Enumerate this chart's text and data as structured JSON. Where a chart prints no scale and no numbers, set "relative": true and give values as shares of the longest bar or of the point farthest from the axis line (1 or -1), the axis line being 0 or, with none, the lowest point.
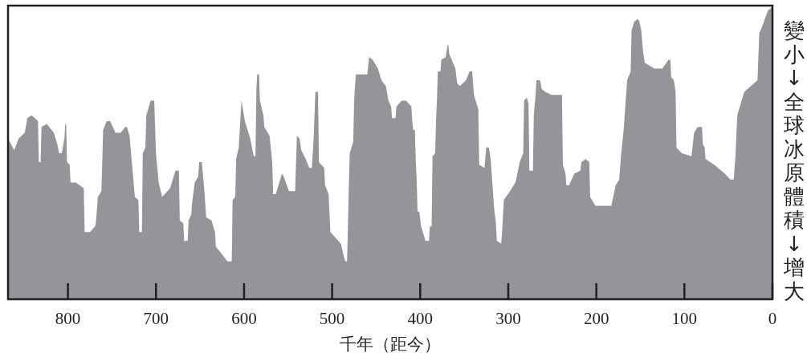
{
  "chart_data": {
    "type": "area",
    "relative": true,
    "xlabel": "千年（距今）",
    "ylabel": "變小↓全球冰原體積↓增大",
    "color": "#939598",
    "xlim": [
      868,
      0
    ],
    "xticks": [
      800,
      700,
      600,
      500,
      400,
      300,
      200,
      100,
      0
    ],
    "x": [
      868,
      861,
      856,
      849,
      846,
      841,
      834,
      833,
      831,
      830,
      824,
      816,
      812,
      810,
      807,
      804,
      803,
      802,
      801,
      798,
      797,
      791,
      782,
      781,
      775,
      769,
      768,
      766,
      762,
      761,
      760,
      756,
      752,
      746,
      740,
      735,
      733,
      730,
      726,
      724,
      720,
      719,
      716,
      715,
      712,
      711,
      706,
      702,
      700,
      697,
      693,
      684,
      679,
      678,
      674,
      673,
      669,
      668,
      664,
      663,
      660,
      659,
      656,
      652,
      651,
      648,
      645,
      643,
      637,
      633,
      632,
      624,
      619,
      616,
      614,
      613,
      610,
      609,
      606,
      603,
      599,
      593,
      589,
      587,
      586,
      585,
      583,
      582,
      578,
      577,
      571,
      568,
      567,
      564,
      557,
      555,
      549,
      542,
      540,
      537,
      535,
      530,
      526,
      523,
      521,
      519,
      516,
      515,
      509,
      508,
      504,
      502,
      490,
      487,
      485,
      483,
      481,
      480,
      476,
      475,
      474,
      473,
      460,
      458,
      454,
      448,
      444,
      439,
      436,
      433,
      432,
      428,
      427,
      421,
      416,
      410,
      409,
      408,
      406,
      405,
      404,
      403,
      401,
      399,
      394,
      390,
      389,
      387,
      386,
      383,
      382,
      381,
      380,
      377,
      376,
      371,
      369,
      368,
      367,
      360,
      358,
      355,
      348,
      344,
      341,
      339,
      334,
      333,
      327,
      325,
      322,
      320,
      316,
      314,
      313,
      308,
      307,
      305,
      298,
      292,
      291,
      287,
      283,
      282,
      279,
      277,
      276,
      272,
      271,
      269,
      268,
      264,
      262,
      258,
      251,
      239,
      238,
      235,
      234,
      231,
      225,
      218,
      217,
      212,
      208,
      207,
      201,
      183,
      178,
      174,
      172,
      169,
      165,
      161,
      160,
      157,
      153,
      151,
      149,
      147,
      145,
      134,
      125,
      118,
      116,
      115,
      112,
      110,
      109,
      103,
      92,
      89,
      85,
      80,
      79,
      77,
      76,
      66,
      54,
      48,
      44,
      42,
      40,
      32,
      17,
      15,
      11,
      5,
      0
    ],
    "values": [
      0.55,
      0.51,
      0.55,
      0.57,
      0.62,
      0.63,
      0.61,
      0.47,
      0.47,
      0.59,
      0.6,
      0.57,
      0.53,
      0.5,
      0.5,
      0.55,
      0.6,
      0.6,
      0.47,
      0.46,
      0.4,
      0.4,
      0.38,
      0.23,
      0.23,
      0.25,
      0.27,
      0.35,
      0.37,
      0.47,
      0.58,
      0.61,
      0.61,
      0.57,
      0.57,
      0.59,
      0.59,
      0.56,
      0.42,
      0.35,
      0.34,
      0.23,
      0.23,
      0.5,
      0.52,
      0.63,
      0.68,
      0.68,
      0.5,
      0.4,
      0.35,
      0.38,
      0.43,
      0.44,
      0.44,
      0.27,
      0.26,
      0.2,
      0.2,
      0.27,
      0.29,
      0.33,
      0.4,
      0.42,
      0.47,
      0.47,
      0.37,
      0.28,
      0.27,
      0.23,
      0.18,
      0.15,
      0.13,
      0.13,
      0.13,
      0.34,
      0.35,
      0.48,
      0.52,
      0.68,
      0.61,
      0.55,
      0.49,
      0.49,
      0.72,
      0.77,
      0.77,
      0.68,
      0.63,
      0.59,
      0.56,
      0.47,
      0.36,
      0.36,
      0.43,
      0.42,
      0.37,
      0.37,
      0.56,
      0.55,
      0.51,
      0.48,
      0.45,
      0.45,
      0.55,
      0.71,
      0.71,
      0.47,
      0.45,
      0.39,
      0.36,
      0.23,
      0.19,
      0.15,
      0.13,
      0.13,
      0.39,
      0.5,
      0.54,
      0.68,
      0.73,
      0.77,
      0.77,
      0.83,
      0.82,
      0.79,
      0.75,
      0.73,
      0.68,
      0.66,
      0.62,
      0.62,
      0.66,
      0.68,
      0.68,
      0.66,
      0.61,
      0.58,
      0.58,
      0.47,
      0.41,
      0.3,
      0.3,
      0.25,
      0.2,
      0.2,
      0.25,
      0.25,
      0.49,
      0.5,
      0.61,
      0.68,
      0.78,
      0.78,
      0.82,
      0.83,
      0.87,
      0.87,
      0.84,
      0.79,
      0.74,
      0.73,
      0.75,
      0.78,
      0.78,
      0.7,
      0.65,
      0.46,
      0.45,
      0.52,
      0.52,
      0.48,
      0.31,
      0.26,
      0.2,
      0.19,
      0.23,
      0.34,
      0.37,
      0.4,
      0.41,
      0.47,
      0.5,
      0.68,
      0.69,
      0.67,
      0.44,
      0.44,
      0.63,
      0.7,
      0.75,
      0.75,
      0.72,
      0.71,
      0.7,
      0.7,
      0.46,
      0.43,
      0.39,
      0.39,
      0.43,
      0.44,
      0.47,
      0.48,
      0.47,
      0.35,
      0.32,
      0.32,
      0.39,
      0.41,
      0.49,
      0.58,
      0.75,
      0.78,
      0.92,
      0.95,
      0.96,
      0.95,
      0.92,
      0.85,
      0.81,
      0.79,
      0.79,
      0.82,
      0.82,
      0.76,
      0.75,
      0.71,
      0.52,
      0.5,
      0.49,
      0.57,
      0.59,
      0.59,
      0.53,
      0.52,
      0.48,
      0.46,
      0.43,
      0.41,
      0.41,
      0.49,
      0.63,
      0.71,
      0.75,
      0.91,
      0.94,
      0.99,
      1.0
    ]
  }
}
